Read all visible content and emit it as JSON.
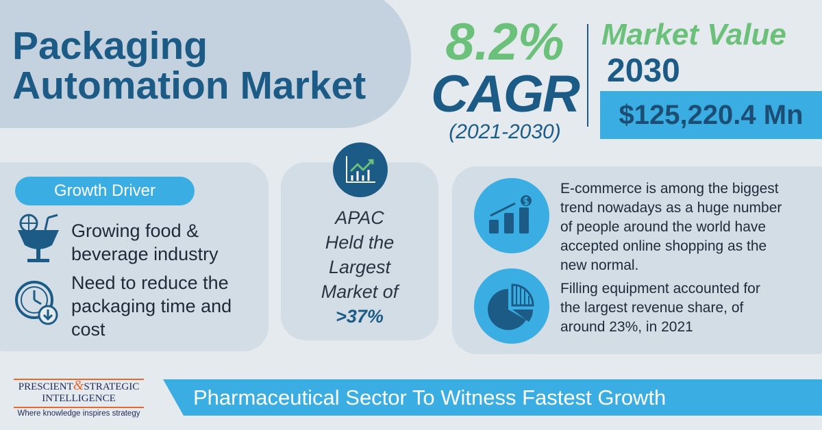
{
  "title": {
    "line1": "Packaging",
    "line2": "Automation Market"
  },
  "cagr": {
    "value": "8.2%",
    "label": "CAGR",
    "period": "(2021-2030)"
  },
  "market_value": {
    "label": "Market Value",
    "year": "2030",
    "amount": "$125,220.4 Mn"
  },
  "growth_driver": {
    "label": "Growth Driver",
    "items": [
      {
        "icon": "beverage-glass-icon",
        "text_1": "Growing food &",
        "text_2": "beverage industry"
      },
      {
        "icon": "clock-down-icon",
        "text_1": "Need to reduce the",
        "text_2": "packaging time and",
        "text_3": "cost"
      }
    ]
  },
  "apac": {
    "icon": "growth-chart-icon",
    "line1": "APAC",
    "line2": "Held the",
    "line3": "Largest",
    "line4": "Market of",
    "value": ">37%"
  },
  "insights": [
    {
      "icon": "revenue-growth-icon",
      "lines": [
        "E-commerce is among the biggest",
        "trend nowadays as a huge number",
        "of people around the world have",
        "accepted online shopping as the",
        "new normal."
      ]
    },
    {
      "icon": "pie-chart-icon",
      "lines": [
        "Filling equipment accounted for",
        "the largest revenue share, of",
        "around 23%, in 2021"
      ]
    }
  ],
  "banner": "Pharmaceutical Sector To Witness Fastest Growth",
  "logo": {
    "name_1": "PRESCIENT",
    "amp": "&",
    "name_2": "STRATEGIC",
    "name_3": "INTELLIGENCE",
    "tagline": "Where knowledge inspires strategy"
  },
  "colors": {
    "dark_blue": "#1c5b86",
    "green": "#6cc17a",
    "light_blue": "#3aaee2"
  }
}
